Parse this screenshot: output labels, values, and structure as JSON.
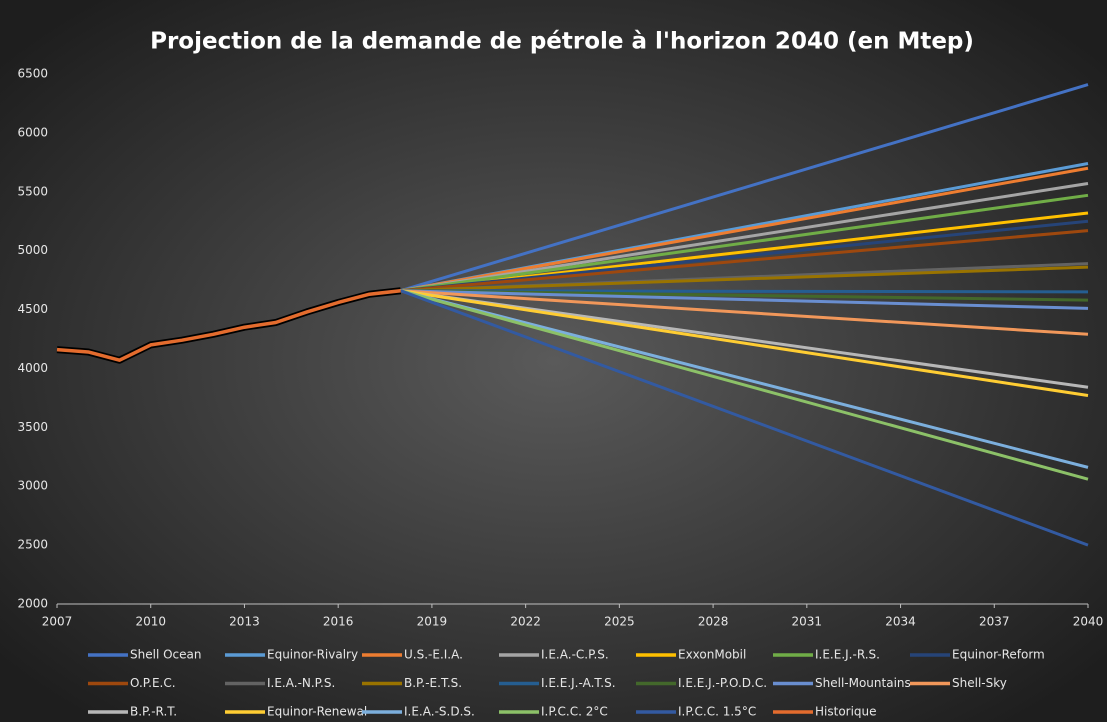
{
  "chart_data": {
    "type": "line",
    "title": "Projection de la demande de pétrole à l'horizon 2040 (en Mtep)",
    "xlim": [
      2007,
      2040
    ],
    "xticks": [
      2007,
      2010,
      2013,
      2016,
      2019,
      2022,
      2025,
      2028,
      2031,
      2034,
      2037,
      2040
    ],
    "ylim": [
      2000,
      6500
    ],
    "yticks": [
      2000,
      2500,
      3000,
      3500,
      4000,
      4500,
      5000,
      5500,
      6000,
      6500
    ],
    "grid": false,
    "legend": "bottom",
    "series": [
      {
        "name": "Shell Ocean",
        "color": "#4472c4",
        "x": [
          2018,
          2040
        ],
        "values": [
          4660,
          6410
        ]
      },
      {
        "name": "Equinor-Rivalry",
        "color": "#5b9bd5",
        "x": [
          2018,
          2040
        ],
        "values": [
          4660,
          5740
        ]
      },
      {
        "name": "U.S.-E.I.A.",
        "color": "#ed7d31",
        "x": [
          2018,
          2040
        ],
        "values": [
          4660,
          5700
        ]
      },
      {
        "name": "I.E.A.-C.P.S.",
        "color": "#a5a5a5",
        "x": [
          2018,
          2040
        ],
        "values": [
          4660,
          5570
        ]
      },
      {
        "name": "ExxonMobil",
        "color": "#ffc000",
        "x": [
          2018,
          2040
        ],
        "values": [
          4660,
          5320
        ]
      },
      {
        "name": "I.E.E.J.-R.S.",
        "color": "#70ad47",
        "x": [
          2018,
          2040
        ],
        "values": [
          4660,
          5470
        ]
      },
      {
        "name": "Equinor-Reform",
        "color": "#264478",
        "x": [
          2018,
          2040
        ],
        "values": [
          4660,
          5250
        ]
      },
      {
        "name": "O.P.E.C.",
        "color": "#9e480e",
        "x": [
          2018,
          2040
        ],
        "values": [
          4660,
          5170
        ]
      },
      {
        "name": "I.E.A.-N.P.S.",
        "color": "#636363",
        "x": [
          2018,
          2040
        ],
        "values": [
          4660,
          4890
        ]
      },
      {
        "name": "B.P.-E.T.S.",
        "color": "#997300",
        "x": [
          2018,
          2040
        ],
        "values": [
          4660,
          4860
        ]
      },
      {
        "name": "I.E.E.J.-A.T.S.",
        "color": "#255e91",
        "x": [
          2018,
          2040
        ],
        "values": [
          4660,
          4650
        ]
      },
      {
        "name": "I.E.E.J.-P.O.D.C.",
        "color": "#43682b",
        "x": [
          2018,
          2040
        ],
        "values": [
          4660,
          4580
        ]
      },
      {
        "name": "Shell-Mountains",
        "color": "#698ed0",
        "x": [
          2018,
          2040
        ],
        "values": [
          4660,
          4510
        ]
      },
      {
        "name": "Shell-Sky",
        "color": "#f1975a",
        "x": [
          2018,
          2040
        ],
        "values": [
          4660,
          4290
        ]
      },
      {
        "name": "B.P.-R.T.",
        "color": "#b7b7b7",
        "x": [
          2018,
          2040
        ],
        "values": [
          4660,
          3840
        ]
      },
      {
        "name": "Equinor-Renewal",
        "color": "#ffcd33",
        "x": [
          2018,
          2040
        ],
        "values": [
          4660,
          3770
        ]
      },
      {
        "name": "I.E.A.-S.D.S.",
        "color": "#7cafdd",
        "x": [
          2018,
          2040
        ],
        "values": [
          4660,
          3160
        ]
      },
      {
        "name": "I.P.C.C. 2°C",
        "color": "#8cc168",
        "x": [
          2018,
          2040
        ],
        "values": [
          4660,
          3060
        ]
      },
      {
        "name": "I.P.C.C. 1.5°C",
        "color": "#335aa1",
        "x": [
          2018,
          2040
        ],
        "values": [
          4660,
          2500
        ]
      },
      {
        "name": "Historique",
        "color": "#e46c2e",
        "x": [
          2007,
          2008,
          2009,
          2010,
          2011,
          2012,
          2013,
          2014,
          2015,
          2016,
          2017,
          2018
        ],
        "values": [
          4160,
          4140,
          4070,
          4200,
          4240,
          4290,
          4350,
          4390,
          4480,
          4560,
          4630,
          4660
        ]
      }
    ]
  }
}
